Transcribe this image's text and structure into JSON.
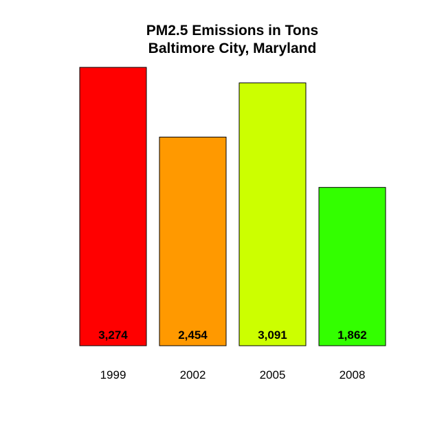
{
  "chart_data": {
    "type": "bar",
    "title": "PM2.5 Emissions in Tons",
    "subtitle": "Baltimore City, Maryland",
    "categories": [
      "1999",
      "2002",
      "2005",
      "2008"
    ],
    "values": [
      3274,
      2454,
      3091,
      1862
    ],
    "value_labels": [
      "3,274",
      "2,454",
      "3,091",
      "1,862"
    ],
    "colors": [
      "#FF0000",
      "#FF9900",
      "#CCFF00",
      "#33FF00"
    ],
    "ylim": [
      0,
      3274
    ],
    "grid": false,
    "legend": "none"
  }
}
